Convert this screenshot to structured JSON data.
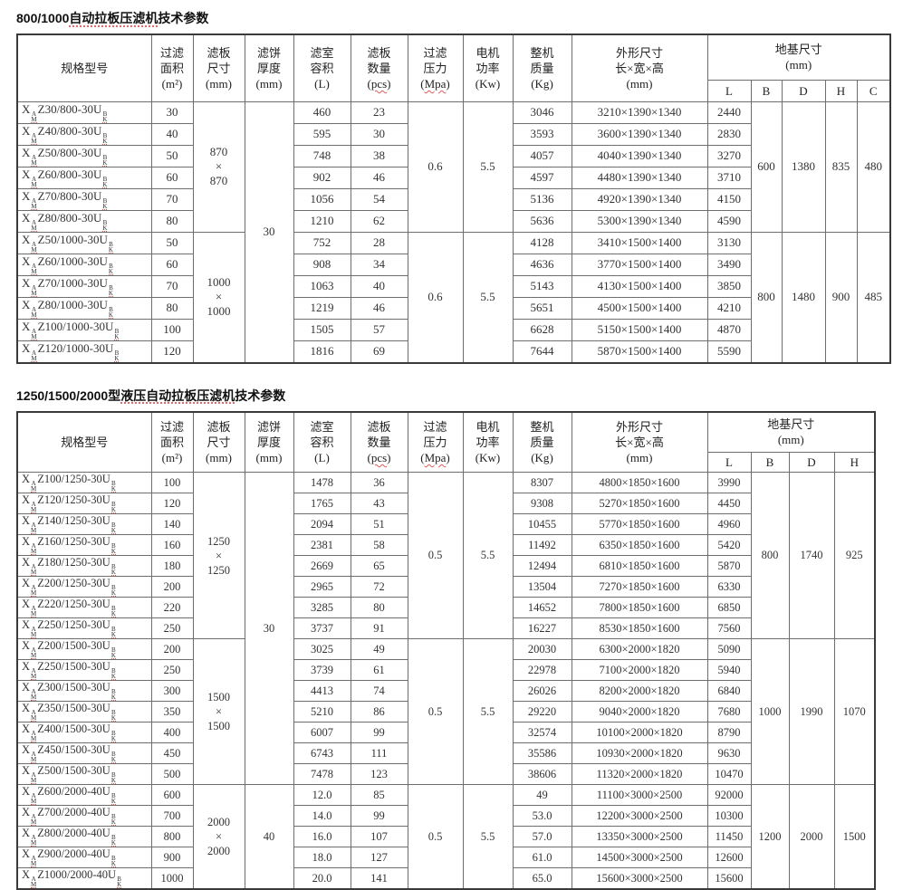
{
  "model_notation": {
    "prefix": "X",
    "stack1": [
      "A",
      "M"
    ],
    "stack2": [
      "B",
      "K"
    ]
  },
  "headers": {
    "model": {
      "lines": [
        "规格型号"
      ]
    },
    "area": {
      "lines": [
        "过滤",
        "面积"
      ],
      "unit": "m²"
    },
    "plate": {
      "lines": [
        "滤板",
        "尺寸"
      ],
      "unit": "mm"
    },
    "thickness": {
      "lines": [
        "滤饼",
        "厚度"
      ],
      "unit": "mm"
    },
    "volume": {
      "lines": [
        "滤室",
        "容积"
      ],
      "unit": "L"
    },
    "plates": {
      "lines": [
        "滤板",
        "数量"
      ],
      "unit": "pcs",
      "sq": true
    },
    "pressure": {
      "lines": [
        "过滤",
        "压力"
      ],
      "unit": "Mpa",
      "sq": true
    },
    "power": {
      "lines": [
        "电机",
        "功率"
      ],
      "unit": "Kw"
    },
    "weight": {
      "lines": [
        "整机",
        "质量"
      ],
      "unit": "Kg"
    },
    "dims": {
      "lines": [
        "外形尺寸",
        "长×宽×高"
      ],
      "unit": "mm"
    },
    "foundation": {
      "lines": [
        "地基尺寸"
      ],
      "unit": "mm"
    }
  },
  "tables": [
    {
      "title": {
        "pre": "800/1000",
        "squiggle": "自动拉板压滤机",
        "post": "技术参数"
      },
      "foundation_cols": [
        "L",
        "B",
        "D",
        "H",
        "C"
      ],
      "thickness_spans": [
        {
          "value": "30",
          "rows": 12
        }
      ],
      "groups": [
        {
          "plate": [
            "870",
            "×",
            "870"
          ],
          "pressure": "0.6",
          "power": "5.5",
          "found": {
            "B": "600",
            "D": "1380",
            "H": "835",
            "C": "480"
          },
          "rows": [
            {
              "m": "Z30/800-30U",
              "area": "30",
              "vol": "460",
              "pcs": "23",
              "wt": "3046",
              "dim": "3210×1390×1340",
              "L": "2440"
            },
            {
              "m": "Z40/800-30U",
              "area": "40",
              "vol": "595",
              "pcs": "30",
              "wt": "3593",
              "dim": "3600×1390×1340",
              "L": "2830"
            },
            {
              "m": "Z50/800-30U",
              "area": "50",
              "vol": "748",
              "pcs": "38",
              "wt": "4057",
              "dim": "4040×1390×1340",
              "L": "3270"
            },
            {
              "m": "Z60/800-30U",
              "area": "60",
              "vol": "902",
              "pcs": "46",
              "wt": "4597",
              "dim": "4480×1390×1340",
              "L": "3710"
            },
            {
              "m": "Z70/800-30U",
              "area": "70",
              "vol": "1056",
              "pcs": "54",
              "wt": "5136",
              "dim": "4920×1390×1340",
              "L": "4150"
            },
            {
              "m": "Z80/800-30U",
              "area": "80",
              "vol": "1210",
              "pcs": "62",
              "wt": "5636",
              "dim": "5300×1390×1340",
              "L": "4590"
            }
          ]
        },
        {
          "plate": [
            "1000",
            "×",
            "1000"
          ],
          "pressure": "0.6",
          "power": "5.5",
          "found": {
            "B": "800",
            "D": "1480",
            "H": "900",
            "C": "485"
          },
          "rows": [
            {
              "m": "Z50/1000-30U",
              "area": "50",
              "vol": "752",
              "pcs": "28",
              "wt": "4128",
              "dim": "3410×1500×1400",
              "L": "3130"
            },
            {
              "m": "Z60/1000-30U",
              "area": "60",
              "vol": "908",
              "pcs": "34",
              "wt": "4636",
              "dim": "3770×1500×1400",
              "L": "3490"
            },
            {
              "m": "Z70/1000-30U",
              "area": "70",
              "vol": "1063",
              "pcs": "40",
              "wt": "5143",
              "dim": "4130×1500×1400",
              "L": "3850"
            },
            {
              "m": "Z80/1000-30U",
              "area": "80",
              "vol": "1219",
              "pcs": "46",
              "wt": "5651",
              "dim": "4500×1500×1400",
              "L": "4210"
            },
            {
              "m": "Z100/1000-30U",
              "area": "100",
              "vol": "1505",
              "pcs": "57",
              "wt": "6628",
              "dim": "5150×1500×1400",
              "L": "4870"
            },
            {
              "m": "Z120/1000-30U",
              "area": "120",
              "vol": "1816",
              "pcs": "69",
              "wt": "7644",
              "dim": "5870×1500×1400",
              "L": "5590"
            }
          ]
        }
      ]
    },
    {
      "title": {
        "pre": "1250/1500/2000型",
        "squiggle": "液压自动拉板压滤机",
        "post": "技术参数"
      },
      "foundation_cols": [
        "L",
        "B",
        "D",
        "H"
      ],
      "thickness_spans": [
        {
          "value": "30",
          "rows": 15
        },
        {
          "value": "40",
          "rows": 5
        }
      ],
      "groups": [
        {
          "plate": [
            "1250",
            "×",
            "1250"
          ],
          "pressure": "0.5",
          "power": "5.5",
          "found": {
            "B": "800",
            "D": "1740",
            "H": "925"
          },
          "rows": [
            {
              "m": "Z100/1250-30U",
              "area": "100",
              "vol": "1478",
              "pcs": "36",
              "wt": "8307",
              "dim": "4800×1850×1600",
              "L": "3990"
            },
            {
              "m": "Z120/1250-30U",
              "area": "120",
              "vol": "1765",
              "pcs": "43",
              "wt": "9308",
              "dim": "5270×1850×1600",
              "L": "4450"
            },
            {
              "m": "Z140/1250-30U",
              "area": "140",
              "vol": "2094",
              "pcs": "51",
              "wt": "10455",
              "dim": "5770×1850×1600",
              "L": "4960"
            },
            {
              "m": "Z160/1250-30U",
              "area": "160",
              "vol": "2381",
              "pcs": "58",
              "wt": "11492",
              "dim": "6350×1850×1600",
              "L": "5420"
            },
            {
              "m": "Z180/1250-30U",
              "area": "180",
              "vol": "2669",
              "pcs": "65",
              "wt": "12494",
              "dim": "6810×1850×1600",
              "L": "5870"
            },
            {
              "m": "Z200/1250-30U",
              "area": "200",
              "vol": "2965",
              "pcs": "72",
              "wt": "13504",
              "dim": "7270×1850×1600",
              "L": "6330"
            },
            {
              "m": "Z220/1250-30U",
              "area": "220",
              "vol": "3285",
              "pcs": "80",
              "wt": "14652",
              "dim": "7800×1850×1600",
              "L": "6850"
            },
            {
              "m": "Z250/1250-30U",
              "area": "250",
              "vol": "3737",
              "pcs": "91",
              "wt": "16227",
              "dim": "8530×1850×1600",
              "L": "7560"
            }
          ]
        },
        {
          "plate": [
            "1500",
            "×",
            "1500"
          ],
          "pressure": "0.5",
          "power": "5.5",
          "found": {
            "B": "1000",
            "D": "1990",
            "H": "1070"
          },
          "rows": [
            {
              "m": "Z200/1500-30U",
              "area": "200",
              "vol": "3025",
              "pcs": "49",
              "wt": "20030",
              "dim": "6300×2000×1820",
              "L": "5090"
            },
            {
              "m": "Z250/1500-30U",
              "area": "250",
              "vol": "3739",
              "pcs": "61",
              "wt": "22978",
              "dim": "7100×2000×1820",
              "L": "5940"
            },
            {
              "m": "Z300/1500-30U",
              "area": "300",
              "vol": "4413",
              "pcs": "74",
              "wt": "26026",
              "dim": "8200×2000×1820",
              "L": "6840"
            },
            {
              "m": "Z350/1500-30U",
              "area": "350",
              "vol": "5210",
              "pcs": "86",
              "wt": "29220",
              "dim": "9040×2000×1820",
              "L": "7680"
            },
            {
              "m": "Z400/1500-30U",
              "area": "400",
              "vol": "6007",
              "pcs": "99",
              "wt": "32574",
              "dim": "10100×2000×1820",
              "L": "8790"
            },
            {
              "m": "Z450/1500-30U",
              "area": "450",
              "vol": "6743",
              "pcs": "111",
              "wt": "35586",
              "dim": "10930×2000×1820",
              "L": "9630"
            },
            {
              "m": "Z500/1500-30U",
              "area": "500",
              "vol": "7478",
              "pcs": "123",
              "wt": "38606",
              "dim": "11320×2000×1820",
              "L": "10470"
            }
          ]
        },
        {
          "plate": [
            "2000",
            "×",
            "2000"
          ],
          "pressure": "0.5",
          "power": "5.5",
          "found": {
            "B": "1200",
            "D": "2000",
            "H": "1500"
          },
          "rows": [
            {
              "m": "Z600/2000-40U",
              "area": "600",
              "vol": "12.0",
              "pcs": "85",
              "wt": "49",
              "dim": "11100×3000×2500",
              "L": "92000"
            },
            {
              "m": "Z700/2000-40U",
              "area": "700",
              "vol": "14.0",
              "pcs": "99",
              "wt": "53.0",
              "dim": "12200×3000×2500",
              "L": "10300"
            },
            {
              "m": "Z800/2000-40U",
              "area": "800",
              "vol": "16.0",
              "pcs": "107",
              "wt": "57.0",
              "dim": "13350×3000×2500",
              "L": "11450"
            },
            {
              "m": "Z900/2000-40U",
              "area": "900",
              "vol": "18.0",
              "pcs": "127",
              "wt": "61.0",
              "dim": "14500×3000×2500",
              "L": "12600"
            },
            {
              "m": "Z1000/2000-40U",
              "area": "1000",
              "vol": "20.0",
              "pcs": "141",
              "wt": "65.0",
              "dim": "15600×3000×2500",
              "L": "15600"
            }
          ]
        }
      ]
    }
  ]
}
